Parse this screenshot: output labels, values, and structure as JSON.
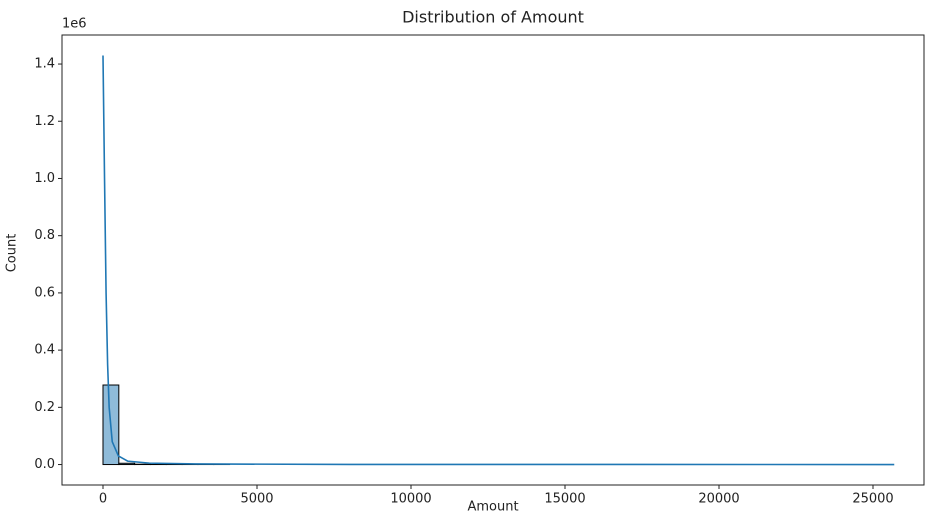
{
  "chart_data": {
    "type": "histogram",
    "title": "Distribution of Amount",
    "x_label": "Amount",
    "y_label": "Count",
    "y_offset_label": "1e6",
    "bins": [
      0,
      513.8,
      1027.6,
      1541.4,
      2055.2,
      2569,
      3082.8,
      3596.6,
      4110.4,
      4624.2,
      5138,
      5651.8,
      6165.6,
      6679.4,
      7193.2,
      7707,
      8220.8,
      8734.6,
      9248.4,
      9762.2,
      10276,
      10789.8,
      11303.6,
      11817.4,
      12331.2,
      12845,
      13358.8,
      13872.6,
      14386.4,
      14900.2,
      15414,
      15927.8,
      16441.6,
      16955.4,
      17469.2,
      17983,
      18496.8,
      19010.6,
      19524.4,
      20038.2,
      20552,
      21065.8,
      21579.6,
      22093.4,
      22607.2,
      23121,
      23634.8,
      24148.6,
      24662.4,
      25176.2,
      25690
    ],
    "values": [
      0.278,
      0.0045,
      0.0012,
      0.0005,
      0.0003,
      0.0002,
      0.0001,
      0.0001,
      0,
      0,
      0,
      0,
      0,
      0,
      0,
      0,
      0,
      0,
      0,
      0,
      0,
      0,
      0,
      0,
      0,
      0,
      0,
      0,
      0,
      0,
      0,
      0,
      0,
      0,
      0,
      0,
      0,
      0,
      0,
      0,
      0,
      0,
      0,
      0,
      0,
      0,
      0,
      0,
      0,
      0
    ],
    "color": "#8fbbd9",
    "edge_color": "#000000",
    "kde": {
      "color": "#1f77b4",
      "x": [
        0,
        50,
        100,
        150,
        200,
        300,
        500,
        800,
        1500,
        3000,
        8000,
        25690
      ],
      "values": [
        1.43,
        1.0,
        0.6,
        0.35,
        0.2,
        0.08,
        0.03,
        0.012,
        0.005,
        0.002,
        0.0005,
        0
      ]
    },
    "xlim": [
      -1331,
      26656
    ],
    "xticks": [
      0,
      5000,
      10000,
      15000,
      20000,
      25000
    ],
    "ylim": [
      -0.0715,
      1.5015
    ],
    "yticks": [
      {
        "value": 0,
        "label": "0.0"
      },
      0.2,
      0.4,
      0.6,
      0.8,
      {
        "value": 1,
        "label": "1.0"
      },
      1.2,
      1.4
    ],
    "grid": false
  }
}
